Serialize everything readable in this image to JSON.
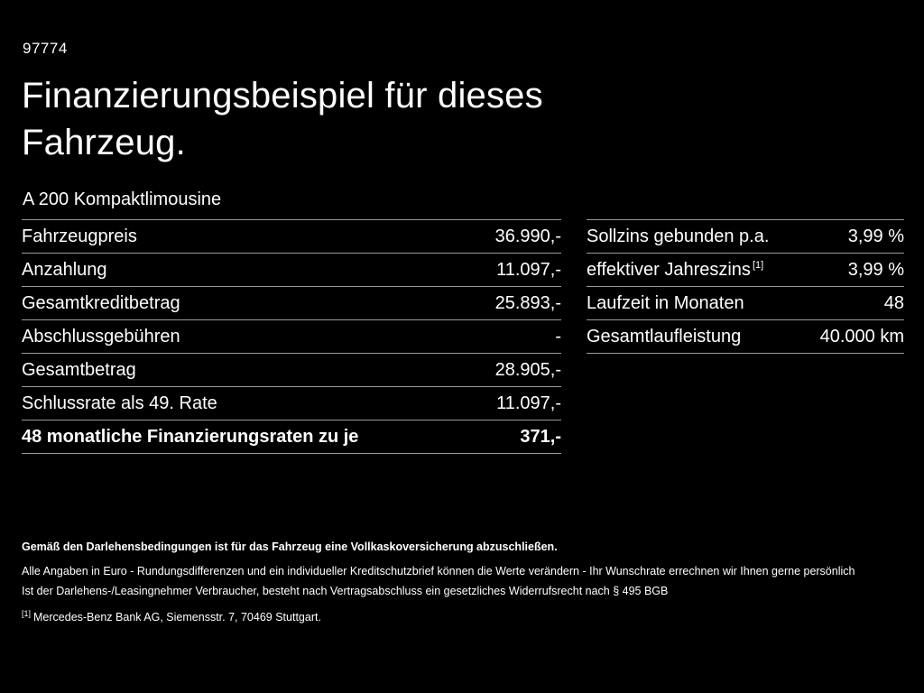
{
  "page_id": "97774",
  "heading": {
    "line1": "Finanzierungsbeispiel für dieses",
    "line2": "Fahrzeug."
  },
  "vehicle": "A 200 Kompaktlimousine",
  "left_table": {
    "rows": [
      {
        "label": "Fahrzeugpreis",
        "value": "36.990,-"
      },
      {
        "label": "Anzahlung",
        "value": "11.097,-"
      },
      {
        "label": "Gesamtkreditbetrag",
        "value": "25.893,-"
      },
      {
        "label": "Abschlussgebühren",
        "value": "-"
      },
      {
        "label": "Gesamtbetrag",
        "value": "28.905,-"
      },
      {
        "label": "Schlussrate als 49. Rate",
        "value": "11.097,-"
      },
      {
        "label": "48 monatliche Finanzierungsraten zu je",
        "value": "371,-"
      }
    ]
  },
  "right_table": {
    "rows": [
      {
        "label": "Sollzins gebunden p.a.",
        "value": "3,99 %"
      },
      {
        "label": "effektiver Jahreszins",
        "sup": "[1]",
        "value": "3,99 %"
      },
      {
        "label": "Laufzeit in Monaten",
        "value": "48"
      },
      {
        "label": "Gesamtlaufleistung",
        "value": "40.000 km"
      }
    ]
  },
  "footer": {
    "line1": "Gemäß den Darlehensbedingungen ist für das Fahrzeug eine Vollkaskoversicherung abzuschließen.",
    "line2": "Alle Angaben in Euro - Rundungsdifferenzen und ein individueller Kreditschutzbrief können die Werte verändern - Ihr Wunschrate errechnen wir Ihnen gerne persönlich",
    "line3": "Ist der Darlehens-/Leasingnehmer Verbraucher, besteht nach Vertragsabschluss ein gesetzliches Widerrufsrecht nach § 495 BGB",
    "footnote_marker": "[1]",
    "footnote_text": "Mercedes-Benz Bank AG, Siemensstr. 7, 70469 Stuttgart."
  },
  "colors": {
    "background": "#000000",
    "text": "#ffffff",
    "divider": "#999999"
  }
}
